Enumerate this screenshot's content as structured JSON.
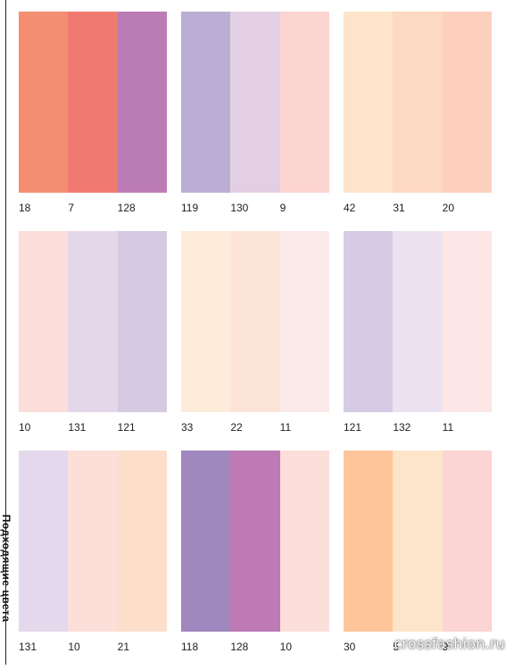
{
  "side_title": "Подходящие цвета",
  "palettes": [
    {
      "codes": [
        "18",
        "7",
        "128"
      ],
      "colors": [
        "#f48e73",
        "#f17a70",
        "#bb7cb6"
      ]
    },
    {
      "codes": [
        "119",
        "130",
        "9"
      ],
      "colors": [
        "#bbaed4",
        "#e3cfe4",
        "#fcd4d1"
      ]
    },
    {
      "codes": [
        "42",
        "31",
        "20"
      ],
      "colors": [
        "#fee4c9",
        "#fdd9c1",
        "#fdd0bd"
      ]
    },
    {
      "codes": [
        "10",
        "131",
        "121"
      ],
      "colors": [
        "#fcdeda",
        "#e5d7ea",
        "#d6c9e2"
      ]
    },
    {
      "codes": [
        "33",
        "22",
        "11"
      ],
      "colors": [
        "#fdecd9",
        "#fce4d8",
        "#fce9ea"
      ]
    },
    {
      "codes": [
        "121",
        "132",
        "11"
      ],
      "colors": [
        "#d6cbe4",
        "#ede3f0",
        "#fce6e6"
      ]
    },
    {
      "codes": [
        "131",
        "10",
        "21"
      ],
      "colors": [
        "#e4d8ec",
        "#fcdfd9",
        "#fcdecb"
      ]
    },
    {
      "codes": [
        "118",
        "128",
        "10"
      ],
      "colors": [
        "#9f88bd",
        "#bd7ab5",
        "#fcdfdb"
      ]
    },
    {
      "codes": [
        "30",
        "5",
        "9"
      ],
      "colors": [
        "#fec59a",
        "#fde5c9",
        "#fbd4d3"
      ]
    }
  ],
  "watermark": "crossfashion.ru"
}
